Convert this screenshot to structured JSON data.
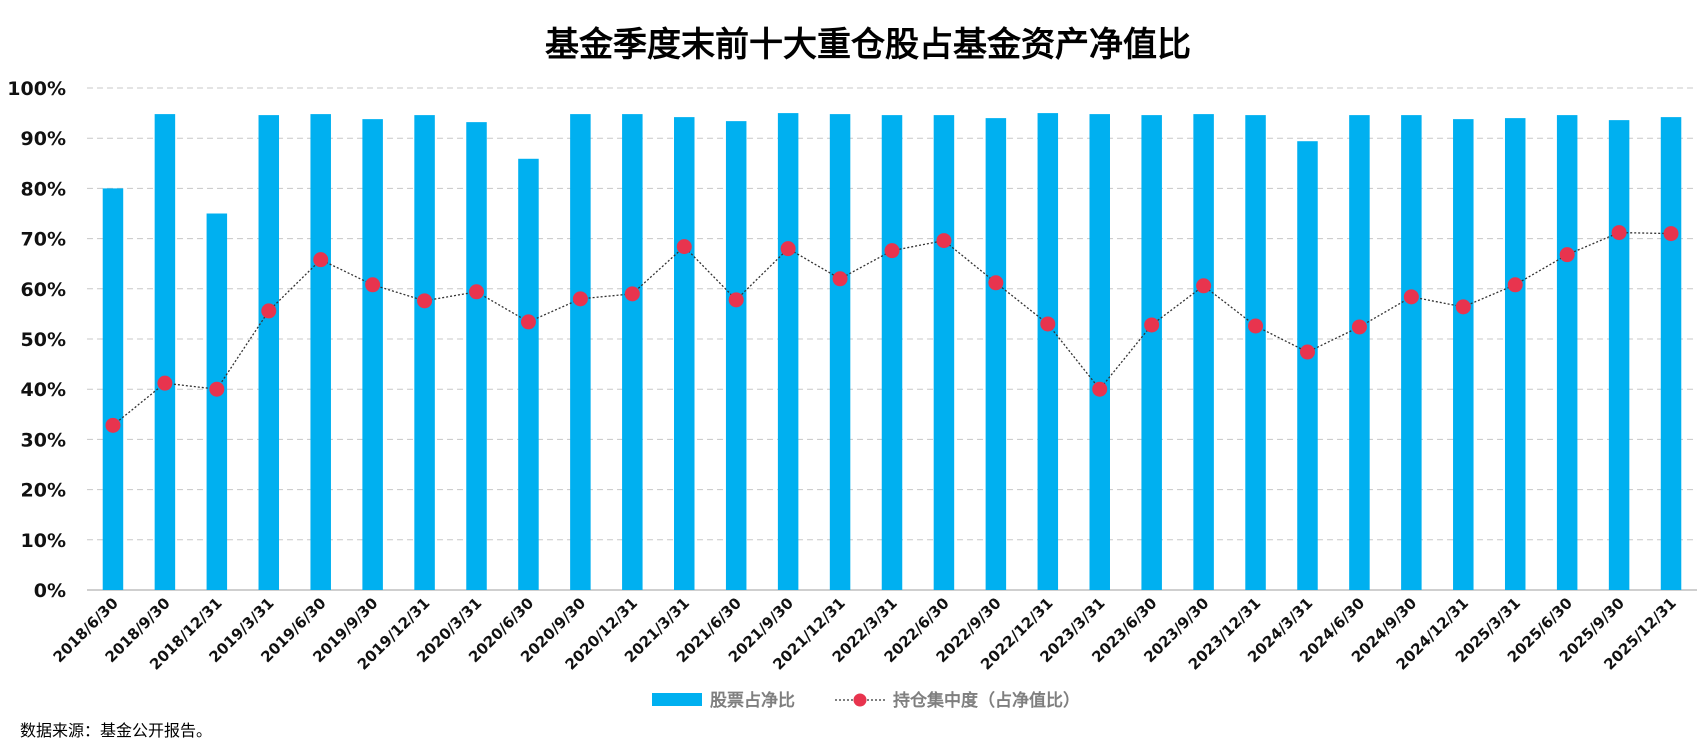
{
  "chart_data": {
    "type": "bar",
    "title": "基金季度末前十大重仓股占基金资产净值比",
    "xlabel": "",
    "ylabel": "",
    "ylim": [
      0,
      100
    ],
    "yticks": [
      "0%",
      "10%",
      "20%",
      "30%",
      "40%",
      "50%",
      "60%",
      "70%",
      "80%",
      "90%",
      "100%"
    ],
    "grid": "dashed horizontal",
    "legend_position": "bottom-center",
    "categories": [
      "2018/6/30",
      "2018/9/30",
      "2018/12/31",
      "2019/3/31",
      "2019/6/30",
      "2019/9/30",
      "2019/12/31",
      "2020/3/31",
      "2020/6/30",
      "2020/9/30",
      "2020/12/31",
      "2021/3/31",
      "2021/6/30",
      "2021/9/30",
      "2021/12/31",
      "2022/3/31",
      "2022/6/30",
      "2022/9/30",
      "2022/12/31",
      "2023/3/31",
      "2023/6/30",
      "2023/9/30",
      "2023/12/31",
      "2024/3/31",
      "2024/6/30",
      "2024/9/30",
      "2024/12/31",
      "2025/3/31",
      "2025/6/30",
      "2025/9/30",
      "2025/12/31"
    ],
    "series": [
      {
        "name": "股票占净比",
        "type": "bar",
        "color": "#00B0F0",
        "values": [
          80.0,
          94.8,
          75.0,
          94.6,
          94.8,
          93.8,
          94.6,
          93.2,
          85.9,
          94.8,
          94.8,
          94.2,
          93.4,
          95.0,
          94.8,
          94.6,
          94.6,
          94.0,
          95.0,
          94.8,
          94.6,
          94.8,
          94.6,
          89.4,
          94.6,
          94.6,
          93.8,
          94.0,
          94.6,
          93.6,
          94.2
        ]
      },
      {
        "name": "持仓集中度（占净值比）",
        "type": "line",
        "color": "#E8344E",
        "line_color": "#333333",
        "line_style": "dotted",
        "values": [
          32.8,
          41.2,
          40.0,
          55.6,
          65.8,
          60.8,
          57.6,
          59.4,
          53.4,
          58.0,
          59.0,
          68.4,
          57.8,
          68.0,
          62.0,
          67.6,
          69.6,
          61.2,
          53.0,
          40.0,
          52.8,
          60.6,
          52.6,
          47.4,
          52.4,
          58.4,
          56.4,
          60.8,
          66.8,
          71.2,
          71.0
        ]
      }
    ]
  },
  "source_note": "数据来源：基金公开报告。"
}
